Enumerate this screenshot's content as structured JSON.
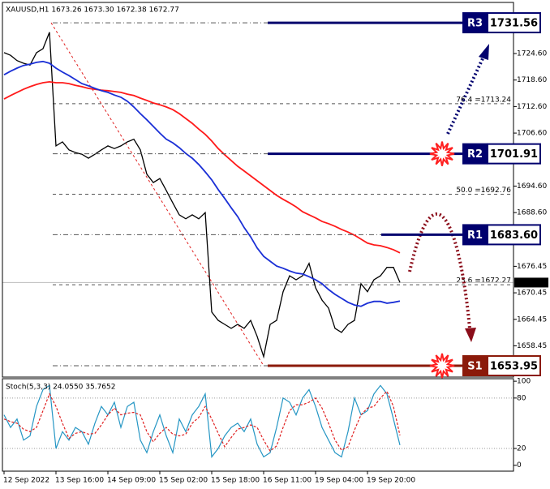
{
  "chart_data": {
    "type": "line",
    "title": "XAUUSD,H1  1673.26 1673.30 1672.38 1672.77",
    "categories": [
      "12 Sep 2022",
      null,
      null,
      null,
      null,
      null,
      null,
      null,
      "13 Sep 16:00",
      null,
      null,
      null,
      null,
      null,
      null,
      null,
      "14 Sep 09:00",
      null,
      null,
      null,
      null,
      null,
      null,
      null,
      "15 Sep 02:00",
      null,
      null,
      null,
      null,
      null,
      null,
      null,
      "15 Sep 18:00",
      null,
      null,
      null,
      null,
      null,
      null,
      null,
      "16 Sep 11:00",
      null,
      null,
      null,
      null,
      null,
      null,
      null,
      "19 Sep 04:00",
      null,
      null,
      null,
      null,
      null,
      null,
      null,
      "19 Sep 20:00",
      null,
      null,
      null,
      null,
      null
    ],
    "series": [
      {
        "color": "#000000",
        "values": [
          1724.8,
          1724.2,
          1723.0,
          1722.4,
          1722.0,
          1724.8,
          1725.7,
          1729.4,
          1703.7,
          1704.6,
          1702.8,
          1702.2,
          1701.8,
          1700.9,
          1701.8,
          1702.8,
          1703.7,
          1703.1,
          1703.7,
          1704.6,
          1705.2,
          1702.8,
          1697.3,
          1695.4,
          1696.3,
          1693.6,
          1690.8,
          1688.1,
          1687.2,
          1688.1,
          1687.2,
          1688.6,
          1666.1,
          1664.2,
          1663.3,
          1662.4,
          1663.3,
          1662.4,
          1664.2,
          1660.6,
          1656.0,
          1663.3,
          1664.2,
          1670.7,
          1674.3,
          1673.4,
          1674.3,
          1677.1,
          1671.6,
          1668.8,
          1667.0,
          1662.4,
          1661.5,
          1663.3,
          1664.2,
          1672.5,
          1670.7,
          1673.4,
          1674.3,
          1676.2,
          1676.2,
          1672.8
        ]
      },
      {
        "color": "#ff1a1a",
        "values": [
          1714.3,
          1715.1,
          1715.8,
          1716.5,
          1717.1,
          1717.6,
          1718.0,
          1718.2,
          1718.0,
          1718.0,
          1717.8,
          1717.4,
          1717.1,
          1716.7,
          1716.5,
          1716.3,
          1716.2,
          1716.0,
          1715.8,
          1715.4,
          1715.1,
          1714.5,
          1714.0,
          1713.4,
          1713.0,
          1712.5,
          1711.9,
          1711.0,
          1709.9,
          1708.8,
          1707.5,
          1706.3,
          1704.8,
          1703.1,
          1701.7,
          1700.4,
          1699.1,
          1698.0,
          1696.9,
          1695.8,
          1694.7,
          1693.6,
          1692.5,
          1691.6,
          1690.8,
          1689.9,
          1688.8,
          1688.1,
          1687.4,
          1686.6,
          1686.1,
          1685.5,
          1684.8,
          1684.2,
          1683.5,
          1682.6,
          1681.7,
          1681.3,
          1681.1,
          1680.7,
          1680.2,
          1679.5
        ]
      },
      {
        "color": "#1a2fd6",
        "values": [
          1719.8,
          1720.6,
          1721.3,
          1721.9,
          1722.2,
          1722.6,
          1722.8,
          1722.4,
          1721.3,
          1720.4,
          1719.6,
          1718.7,
          1717.8,
          1717.3,
          1716.7,
          1716.2,
          1715.8,
          1715.2,
          1714.7,
          1713.8,
          1712.5,
          1711.0,
          1709.6,
          1708.1,
          1706.6,
          1705.2,
          1704.4,
          1703.3,
          1702.0,
          1700.9,
          1699.5,
          1697.8,
          1696.0,
          1693.8,
          1691.8,
          1689.7,
          1687.7,
          1685.2,
          1683.1,
          1680.6,
          1678.7,
          1677.6,
          1676.5,
          1676.0,
          1675.4,
          1674.9,
          1674.7,
          1674.1,
          1673.4,
          1672.5,
          1671.2,
          1670.1,
          1669.2,
          1668.3,
          1667.7,
          1667.4,
          1668.1,
          1668.5,
          1668.5,
          1668.1,
          1668.3,
          1668.6
        ]
      }
    ],
    "ylim": [
      1651.38,
      1736.16
    ],
    "yticks": [
      {
        "value": 1724.6,
        "label": "1724.60"
      },
      {
        "value": 1718.6,
        "label": "1718.60"
      },
      {
        "value": 1712.6,
        "label": "1712.60"
      },
      {
        "value": 1706.6,
        "label": "1706.60"
      },
      {
        "value": 1694.6,
        "label": "1694.60"
      },
      {
        "value": 1688.6,
        "label": "1688.60"
      },
      1676.45,
      1670.45,
      1664.45,
      1658.45
    ],
    "last_price": 1672.77,
    "levels": [
      {
        "name": "R3",
        "value": 1731.56,
        "label": "1731.56",
        "color": "#00006e"
      },
      {
        "name": "R2",
        "value": 1701.91,
        "label": "1701.91",
        "color": "#00006e"
      },
      {
        "name": "R1",
        "value": 1683.6,
        "label": "1683.60",
        "color": "#00006e"
      },
      {
        "name": "S1",
        "value": 1653.95,
        "label": "1653.95",
        "color": "#8b1a0a"
      }
    ],
    "fib_levels": [
      {
        "value": 1713.24,
        "label": "76.4 =1713.24"
      },
      {
        "value": 1692.76,
        "label": "50.0 =1692.76"
      },
      {
        "value": 1672.27,
        "label": "23.6 =1672.27"
      }
    ],
    "oscillator": {
      "title": "Stoch(5,3,3) 24.0550 35.7652",
      "ylim": [
        -7,
        103
      ],
      "yticks": [
        0,
        20,
        80,
        100
      ],
      "series": [
        {
          "color": "#2596c4",
          "values": [
            60,
            45,
            55,
            30,
            35,
            70,
            90,
            95,
            20,
            40,
            30,
            45,
            40,
            25,
            50,
            70,
            60,
            75,
            45,
            70,
            75,
            30,
            15,
            40,
            60,
            35,
            15,
            55,
            40,
            60,
            70,
            85,
            10,
            20,
            35,
            45,
            50,
            40,
            55,
            25,
            10,
            15,
            45,
            80,
            75,
            60,
            80,
            90,
            70,
            45,
            30,
            15,
            10,
            40,
            80,
            60,
            65,
            85,
            95,
            85,
            55,
            24.06
          ]
        },
        {
          "color": "#e02020",
          "dashed": true,
          "values": [
            55,
            52,
            50,
            43,
            40,
            45,
            65,
            85,
            70,
            50,
            32,
            38,
            40,
            37,
            38,
            48,
            60,
            68,
            60,
            62,
            63,
            60,
            40,
            28,
            38,
            45,
            37,
            35,
            37,
            50,
            57,
            70,
            55,
            38,
            22,
            33,
            43,
            45,
            48,
            45,
            30,
            17,
            23,
            45,
            65,
            72,
            72,
            75,
            80,
            68,
            50,
            30,
            18,
            22,
            42,
            60,
            68,
            70,
            80,
            88,
            70,
            35.77
          ]
        }
      ]
    }
  }
}
